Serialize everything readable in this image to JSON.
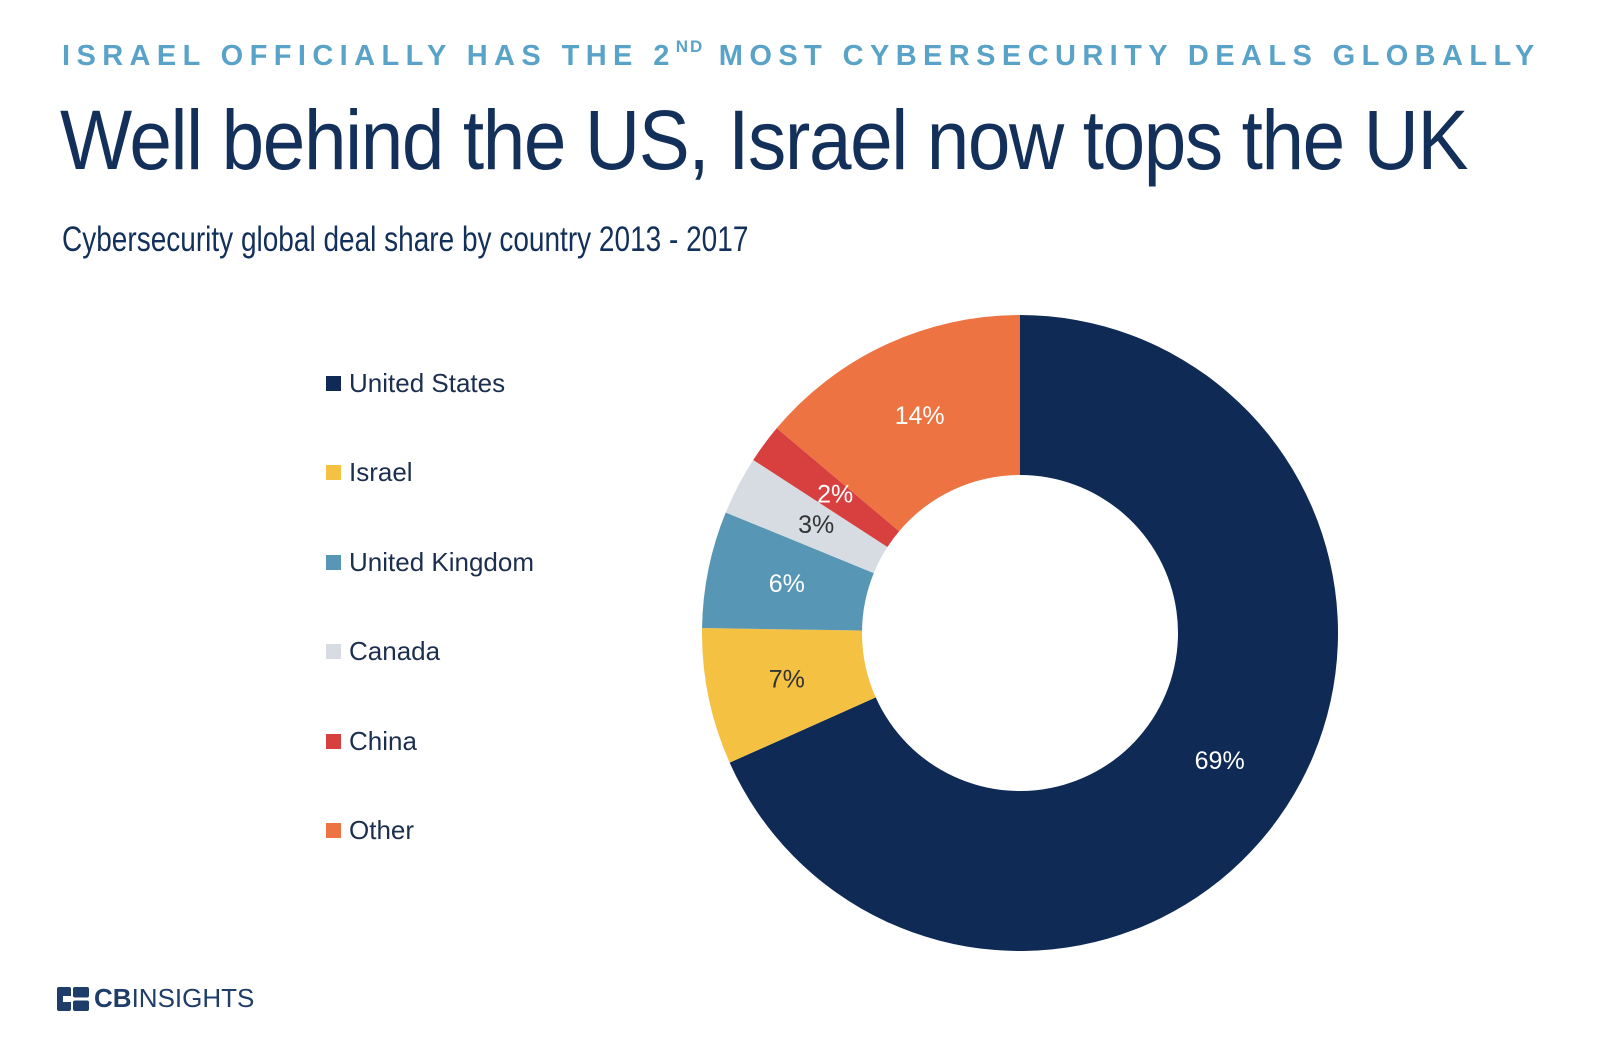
{
  "header": {
    "kicker_pre": "ISRAEL OFFICIALLY HAS THE 2",
    "kicker_sup": "ND",
    "kicker_post": " MOST CYBERSECURITY DEALS GLOBALLY",
    "headline": "Well behind the US, Israel now tops the UK",
    "subtitle": "Cybersecurity global deal share by country 2013 - 2017"
  },
  "chart_data": {
    "type": "pie",
    "style": "donut",
    "title": "Cybersecurity global deal share by country 2013 - 2017",
    "legend_position": "left",
    "series": [
      {
        "name": "United States",
        "value": 69,
        "label": "69%",
        "color": "#0e2a55",
        "label_color": "#ffffff"
      },
      {
        "name": "Israel",
        "value": 7,
        "label": "7%",
        "color": "#f4c142",
        "label_color": "#333333"
      },
      {
        "name": "United Kingdom",
        "value": 6,
        "label": "6%",
        "color": "#5896b6",
        "label_color": "#ffffff"
      },
      {
        "name": "Canada",
        "value": 3,
        "label": "3%",
        "color": "#d7dce3",
        "label_color": "#333333"
      },
      {
        "name": "China",
        "value": 2,
        "label": "2%",
        "color": "#d84040",
        "label_color": "#ffffff"
      },
      {
        "name": "Other",
        "value": 14,
        "label": "14%",
        "color": "#ee7342",
        "label_color": "#ffffff"
      }
    ]
  },
  "logo": {
    "bold": "CB",
    "regular": "INSIGHTS",
    "color": "#1e3d6b"
  }
}
